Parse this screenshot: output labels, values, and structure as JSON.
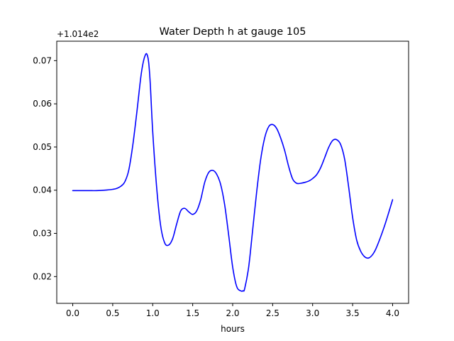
{
  "chart_data": {
    "type": "line",
    "title": "Water Depth h at gauge 105",
    "xlabel": "hours",
    "ylabel": "",
    "offset_label": "+1.014e2",
    "xlim": [
      -0.2,
      4.2
    ],
    "ylim": [
      0.0138,
      0.0745
    ],
    "xticks": [
      0.0,
      0.5,
      1.0,
      1.5,
      2.0,
      2.5,
      3.0,
      3.5,
      4.0
    ],
    "xtick_labels": [
      "0.0",
      "0.5",
      "1.0",
      "1.5",
      "2.0",
      "2.5",
      "3.0",
      "3.5",
      "4.0"
    ],
    "yticks": [
      0.02,
      0.03,
      0.04,
      0.05,
      0.06,
      0.07
    ],
    "ytick_labels": [
      "0.02",
      "0.03",
      "0.04",
      "0.05",
      "0.06",
      "0.07"
    ],
    "grid": false,
    "series": [
      {
        "color": "#0000ff",
        "x": [
          0.0,
          0.1,
          0.2,
          0.3,
          0.4,
          0.5,
          0.55,
          0.6,
          0.65,
          0.7,
          0.75,
          0.8,
          0.85,
          0.88,
          0.91,
          0.93,
          0.95,
          0.97,
          1.0,
          1.05,
          1.1,
          1.15,
          1.2,
          1.25,
          1.3,
          1.35,
          1.4,
          1.45,
          1.5,
          1.55,
          1.6,
          1.65,
          1.7,
          1.75,
          1.8,
          1.85,
          1.9,
          1.95,
          2.0,
          2.05,
          2.1,
          2.13,
          2.15,
          2.2,
          2.25,
          2.3,
          2.35,
          2.4,
          2.45,
          2.5,
          2.55,
          2.6,
          2.65,
          2.7,
          2.75,
          2.8,
          2.85,
          2.9,
          2.95,
          3.0,
          3.05,
          3.1,
          3.15,
          3.2,
          3.25,
          3.3,
          3.35,
          3.4,
          3.45,
          3.5,
          3.55,
          3.6,
          3.65,
          3.7,
          3.75,
          3.8,
          3.9,
          4.0
        ],
        "y": [
          0.0399,
          0.0399,
          0.0399,
          0.0399,
          0.04,
          0.0402,
          0.0404,
          0.0409,
          0.0419,
          0.0446,
          0.0503,
          0.0578,
          0.066,
          0.0695,
          0.0714,
          0.0714,
          0.0695,
          0.0645,
          0.0536,
          0.0405,
          0.0317,
          0.0278,
          0.0273,
          0.0288,
          0.0322,
          0.0352,
          0.0358,
          0.035,
          0.0344,
          0.0352,
          0.0378,
          0.0418,
          0.0441,
          0.0446,
          0.0437,
          0.0413,
          0.0366,
          0.0296,
          0.0222,
          0.0177,
          0.0167,
          0.0167,
          0.0172,
          0.0222,
          0.0308,
          0.0396,
          0.0471,
          0.0521,
          0.0547,
          0.0552,
          0.0543,
          0.0521,
          0.0492,
          0.0455,
          0.0426,
          0.0416,
          0.0416,
          0.0418,
          0.0421,
          0.0427,
          0.0436,
          0.0452,
          0.0475,
          0.0499,
          0.0515,
          0.0517,
          0.0506,
          0.0472,
          0.0408,
          0.0337,
          0.0285,
          0.0259,
          0.0246,
          0.0243,
          0.0251,
          0.0268,
          0.0318,
          0.0378
        ]
      }
    ]
  }
}
